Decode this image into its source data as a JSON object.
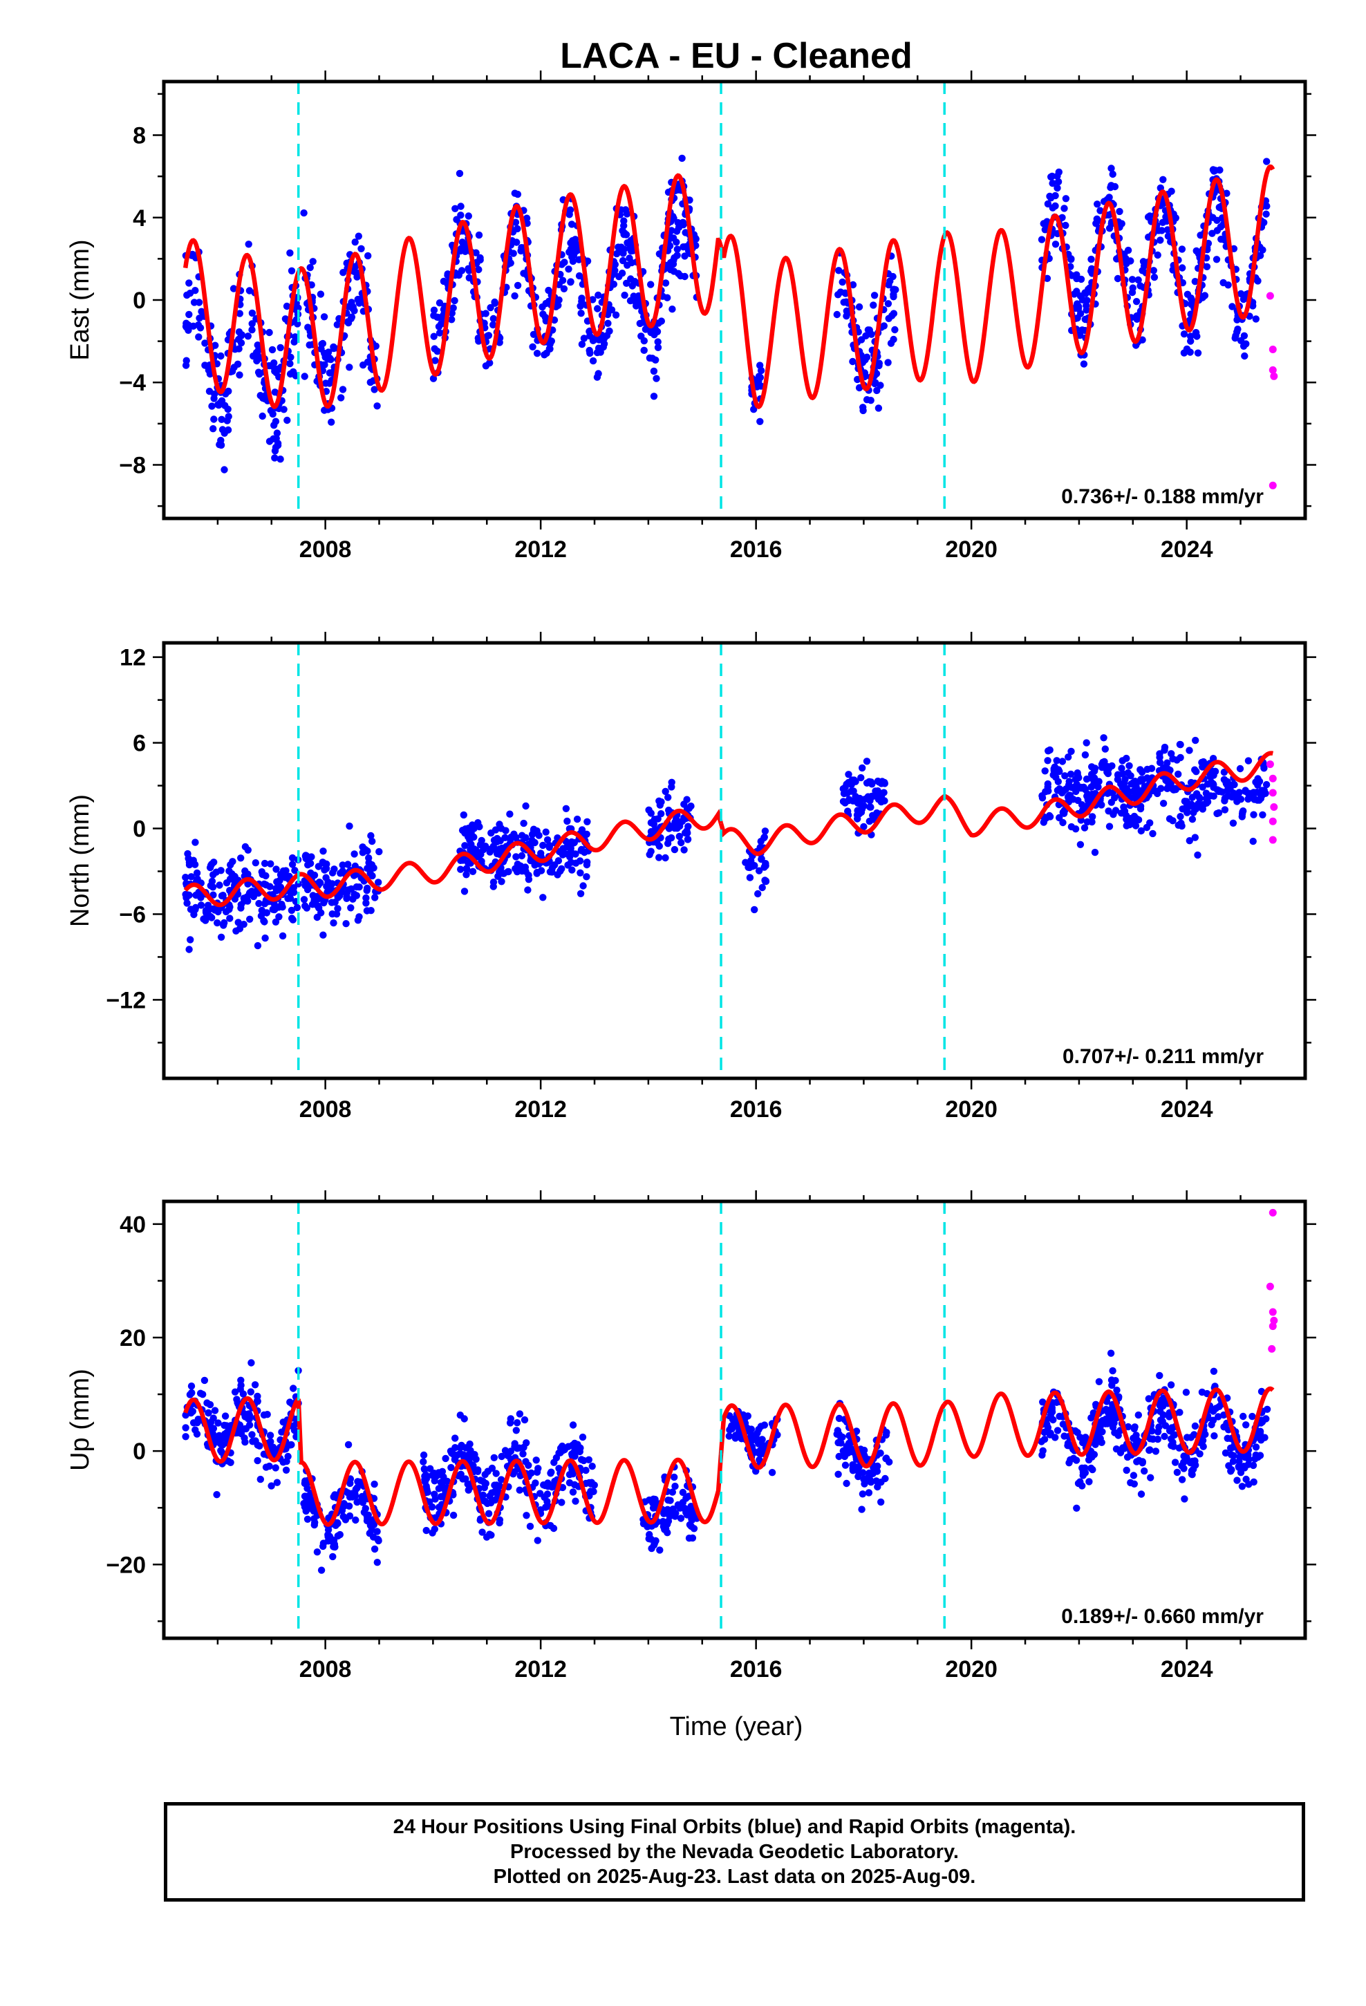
{
  "title": "LACA  - EU - Cleaned",
  "footer": {
    "line1": "24 Hour Positions Using Final Orbits (blue) and Rapid Orbits (magenta).",
    "line2": "Processed by the Nevada Geodetic Laboratory.",
    "line3": "Plotted on 2025-Aug-23. Last data on 2025-Aug-09."
  },
  "colors": {
    "final_orbits": "#0000ff",
    "rapid_orbits": "#ff00ff",
    "model": "#ff0000",
    "offsets": "#00e5e5"
  },
  "chart_data": [
    {
      "type": "scatter",
      "name": "east",
      "ylabel": "East (mm)",
      "xlabel": "",
      "xlim": [
        2005.0,
        2026.2
      ],
      "ylim": [
        -10.6,
        10.6
      ],
      "xticks": [
        2008,
        2012,
        2016,
        2020,
        2024
      ],
      "yticks": [
        -8,
        -4,
        0,
        4,
        8
      ],
      "ytick_labels": [
        "−8",
        "−4",
        "0",
        "4",
        "8"
      ],
      "offsets": [
        2007.5,
        2015.35,
        2019.5
      ],
      "rate_text": "0.736+/- 0.188 mm/yr",
      "model": {
        "segments": [
          [
            2005.4,
            2015.35
          ],
          [
            2015.35,
            2019.5
          ],
          [
            2019.5,
            2025.6
          ]
        ],
        "start_value": -0.5,
        "points": [
          [
            2005.4,
            -0.5
          ],
          [
            2007.5,
            -2.0
          ],
          [
            2008.0,
            -1.7
          ],
          [
            2012.0,
            1.4
          ],
          [
            2014.0,
            2.2
          ],
          [
            2015.3,
            3.0
          ],
          [
            2015.4,
            0.0
          ],
          [
            2016.0,
            -1.7
          ],
          [
            2019.5,
            -0.2
          ],
          [
            2020.0,
            -0.5
          ],
          [
            2022.0,
            0.9
          ],
          [
            2024.0,
            2.0
          ],
          [
            2025.6,
            3.0
          ]
        ],
        "amplitude": 3.5
      },
      "final_clusters": [
        {
          "x": [
            2005.4,
            2007.5
          ],
          "center": -2.5,
          "spread": 2.6,
          "amp": 3.2
        },
        {
          "x": [
            2007.6,
            2009.0
          ],
          "center": -1.5,
          "spread": 2.3,
          "amp": 3.0
        },
        {
          "x": [
            2010.0,
            2014.7
          ],
          "center": 0.5,
          "spread": 2.0,
          "amp": 3.0
        },
        {
          "x": [
            2014.2,
            2014.9
          ],
          "center": 3.0,
          "spread": 1.5,
          "amp": 2.5
        },
        {
          "x": [
            2015.9,
            2016.1
          ],
          "center": -3.0,
          "spread": 1.8,
          "amp": 1.5
        },
        {
          "x": [
            2017.5,
            2018.6
          ],
          "center": -1.5,
          "spread": 2.2,
          "amp": 2.5
        },
        {
          "x": [
            2021.3,
            2025.5
          ],
          "center": 1.8,
          "spread": 2.0,
          "amp": 3.5
        }
      ],
      "rapid_points": [
        [
          2025.55,
          0.2
        ],
        [
          2025.6,
          -2.4
        ],
        [
          2025.6,
          -3.4
        ],
        [
          2025.62,
          -3.7
        ],
        [
          2025.6,
          -9.0
        ]
      ]
    },
    {
      "type": "scatter",
      "name": "north",
      "ylabel": "North (mm)",
      "xlabel": "",
      "xlim": [
        2005.0,
        2026.2
      ],
      "ylim": [
        -17.5,
        13.0
      ],
      "xticks": [
        2008,
        2012,
        2016,
        2020,
        2024
      ],
      "yticks": [
        -12,
        -6,
        0,
        6,
        12
      ],
      "ytick_labels": [
        "−12",
        "−6",
        "0",
        "6",
        "12"
      ],
      "offsets": [
        2007.5,
        2015.35,
        2019.5
      ],
      "rate_text": "0.707+/- 0.211 mm/yr",
      "model": {
        "segments": [
          [
            2005.4,
            2015.35
          ],
          [
            2015.35,
            2019.5
          ],
          [
            2019.5,
            2025.6
          ]
        ],
        "points": [
          [
            2005.4,
            -4.8
          ],
          [
            2007.5,
            -4.0
          ],
          [
            2008.0,
            -4.0
          ],
          [
            2010.0,
            -3.0
          ],
          [
            2012.0,
            -1.5
          ],
          [
            2014.0,
            0.0
          ],
          [
            2015.3,
            1.0
          ],
          [
            2015.4,
            -0.8
          ],
          [
            2016.0,
            -1.0
          ],
          [
            2018.0,
            0.5
          ],
          [
            2019.5,
            1.5
          ],
          [
            2020.0,
            0.3
          ],
          [
            2021.3,
            1.0
          ],
          [
            2023.0,
            2.5
          ],
          [
            2024.0,
            3.5
          ],
          [
            2025.6,
            4.5
          ]
        ],
        "amplitude": 0.8
      },
      "final_clusters": [
        {
          "x": [
            2005.4,
            2007.5
          ],
          "center": -4.5,
          "spread": 2.4,
          "amp": 0.6
        },
        {
          "x": [
            2007.6,
            2009.0
          ],
          "center": -3.8,
          "spread": 2.4,
          "amp": 0.6
        },
        {
          "x": [
            2010.5,
            2012.9
          ],
          "center": -1.8,
          "spread": 2.3,
          "amp": 0.6
        },
        {
          "x": [
            2014.0,
            2014.8
          ],
          "center": 0.0,
          "spread": 2.2,
          "amp": 0.5
        },
        {
          "x": [
            2015.8,
            2016.2
          ],
          "center": -2.5,
          "spread": 1.8,
          "amp": 0.3
        },
        {
          "x": [
            2017.6,
            2018.4
          ],
          "center": 2.0,
          "spread": 1.8,
          "amp": 0.5
        },
        {
          "x": [
            2021.3,
            2025.5
          ],
          "center": 2.8,
          "spread": 2.4,
          "amp": 0.6
        }
      ],
      "rapid_points": [
        [
          2025.55,
          4.5
        ],
        [
          2025.6,
          3.5
        ],
        [
          2025.6,
          2.5
        ],
        [
          2025.62,
          1.5
        ],
        [
          2025.6,
          0.5
        ],
        [
          2025.6,
          -0.8
        ]
      ]
    },
    {
      "type": "scatter",
      "name": "up",
      "ylabel": "Up (mm)",
      "xlabel": "Time (year)",
      "xlim": [
        2005.0,
        2026.2
      ],
      "ylim": [
        -33.0,
        44.0
      ],
      "xticks": [
        2008,
        2012,
        2016,
        2020,
        2024
      ],
      "yticks": [
        -20,
        0,
        20,
        40
      ],
      "ytick_labels": [
        "−20",
        "0",
        "20",
        "40"
      ],
      "offsets": [
        2007.5,
        2015.35,
        2019.5
      ],
      "rate_text": "0.189+/- 0.660 mm/yr",
      "model": {
        "segments": [
          [
            2005.4,
            2007.5
          ],
          [
            2007.5,
            2015.35
          ],
          [
            2015.35,
            2019.5
          ],
          [
            2019.5,
            2025.6
          ]
        ],
        "points": [
          [
            2005.4,
            3.5
          ],
          [
            2007.5,
            4.0
          ],
          [
            2007.55,
            -7.5
          ],
          [
            2015.3,
            -7.0
          ],
          [
            2015.4,
            2.5
          ],
          [
            2019.5,
            3.0
          ],
          [
            2020.0,
            4.5
          ],
          [
            2025.6,
            5.5
          ]
        ],
        "amplitude": 5.5
      },
      "final_clusters": [
        {
          "x": [
            2005.4,
            2007.5
          ],
          "center": 4.0,
          "spread": 5.5,
          "amp": 5.0
        },
        {
          "x": [
            2007.6,
            2009.0
          ],
          "center": -11.0,
          "spread": 5.0,
          "amp": 4.0
        },
        {
          "x": [
            2009.8,
            2013.0
          ],
          "center": -5.0,
          "spread": 6.0,
          "amp": 5.0
        },
        {
          "x": [
            2013.9,
            2014.9
          ],
          "center": -11.0,
          "spread": 5.0,
          "amp": 3.0
        },
        {
          "x": [
            2015.5,
            2016.4
          ],
          "center": 3.0,
          "spread": 4.0,
          "amp": 3.0
        },
        {
          "x": [
            2017.5,
            2018.5
          ],
          "center": -1.0,
          "spread": 5.0,
          "amp": 4.0
        },
        {
          "x": [
            2021.3,
            2025.5
          ],
          "center": 3.0,
          "spread": 5.5,
          "amp": 5.5
        }
      ],
      "rapid_points": [
        [
          2025.6,
          42.0
        ],
        [
          2025.55,
          29.0
        ],
        [
          2025.6,
          24.5
        ],
        [
          2025.62,
          23.0
        ],
        [
          2025.6,
          22.0
        ],
        [
          2025.58,
          18.0
        ]
      ]
    }
  ]
}
